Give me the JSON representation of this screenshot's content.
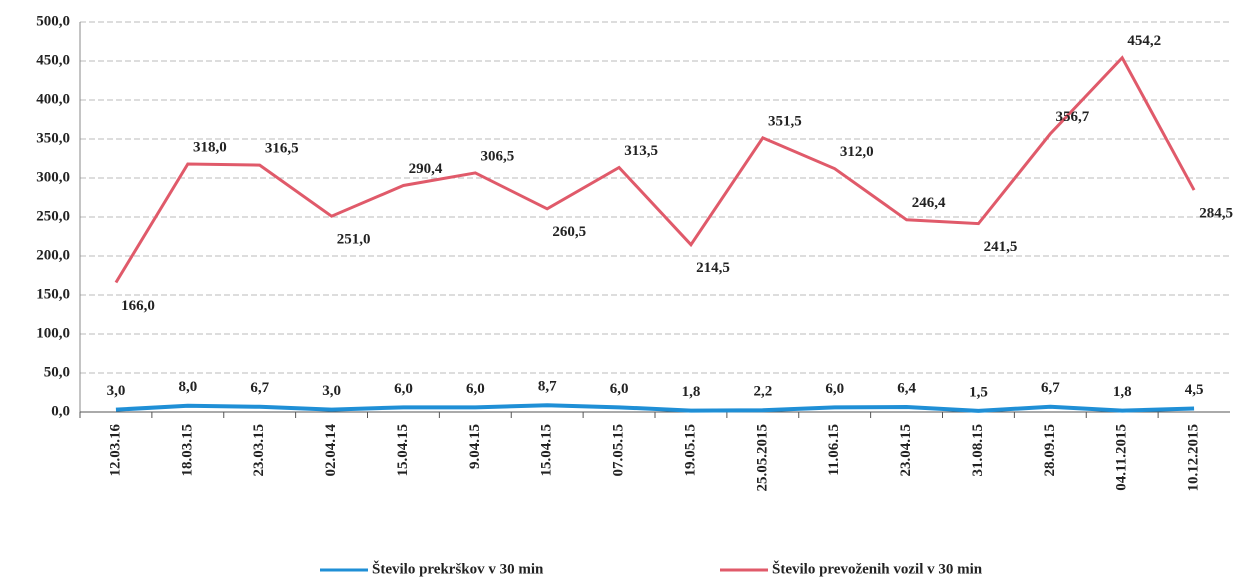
{
  "chart_data": {
    "type": "line",
    "categories": [
      "12.03.16",
      "18.03.15",
      "23.03.15",
      "02.04.14",
      "15.04.15",
      "9.04.15",
      "15.04.15",
      "07.05.15",
      "19.05.15",
      "25.05.2015",
      "11.06.15",
      "23.04.15",
      "31.08.15",
      "28.09.15",
      "04.11.2015",
      "10.12.2015"
    ],
    "series": [
      {
        "name": "Število prekrškov v 30  min",
        "color": "#1f8fd6",
        "values": [
          3.0,
          8.0,
          6.7,
          3.0,
          6.0,
          6.0,
          8.7,
          6.0,
          1.8,
          2.2,
          6.0,
          6.4,
          1.5,
          6.7,
          1.8,
          4.5
        ],
        "value_labels": [
          "3,0",
          "8,0",
          "6,7",
          "3,0",
          "6,0",
          "6,0",
          "8,7",
          "6,0",
          "1,8",
          "2,2",
          "6,0",
          "6,4",
          "1,5",
          "6,7",
          "1,8",
          "4,5"
        ]
      },
      {
        "name": "Število prevoženih vozil v 30  min",
        "color": "#e05a6a",
        "values": [
          166.0,
          318.0,
          316.5,
          251.0,
          290.4,
          306.5,
          260.5,
          313.5,
          214.5,
          351.5,
          312.0,
          246.4,
          241.5,
          356.7,
          454.2,
          284.5
        ],
        "value_labels": [
          "166,0",
          "318,0",
          "316,5",
          "251,0",
          "290,4",
          "306,5",
          "260,5",
          "313,5",
          "214,5",
          "351,5",
          "312,0",
          "246,4",
          "241,5",
          "356,7",
          "454,2",
          "284,5"
        ]
      }
    ],
    "ylim": [
      0,
      500
    ],
    "yticks": [
      {
        "value": 0,
        "label": "0,0"
      },
      {
        "value": 50,
        "label": "50,0"
      },
      {
        "value": 100,
        "label": "100,0"
      },
      {
        "value": 150,
        "label": "150,0"
      },
      {
        "value": 200,
        "label": "200,0"
      },
      {
        "value": 250,
        "label": "250,0"
      },
      {
        "value": 300,
        "label": "300,0"
      },
      {
        "value": 350,
        "label": "350,0"
      },
      {
        "value": 400,
        "label": "400,0"
      },
      {
        "value": 450,
        "label": "450,0"
      },
      {
        "value": 500,
        "label": "500,0"
      }
    ],
    "grid": true,
    "legend": "bottom"
  }
}
